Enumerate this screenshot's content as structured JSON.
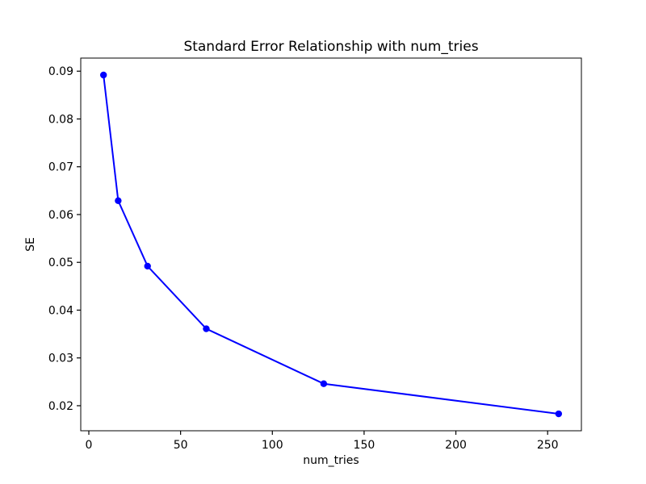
{
  "figure": {
    "background_color": "#ffffff",
    "text_color": "#000000"
  },
  "chart_data": {
    "type": "line",
    "title": "Standard Error Relationship with num_tries",
    "xlabel": "num_tries",
    "ylabel": "SE",
    "x": [
      8,
      16,
      32,
      64,
      128,
      256
    ],
    "y": [
      0.0892,
      0.0629,
      0.0492,
      0.0361,
      0.0246,
      0.0183
    ],
    "line_color": "#0000ff",
    "marker": "circle",
    "grid": false,
    "legend": false,
    "xlim": [
      -4.4,
      268.4
    ],
    "ylim": [
      0.01476,
      0.09274
    ],
    "xticks": [
      0,
      50,
      100,
      150,
      200,
      250
    ],
    "xtick_labels": [
      "0",
      "50",
      "100",
      "150",
      "200",
      "250"
    ],
    "yticks": [
      0.02,
      0.03,
      0.04,
      0.05,
      0.06,
      0.07,
      0.08,
      0.09
    ],
    "ytick_labels": [
      "0.02",
      "0.03",
      "0.04",
      "0.05",
      "0.06",
      "0.07",
      "0.08",
      "0.09"
    ]
  }
}
